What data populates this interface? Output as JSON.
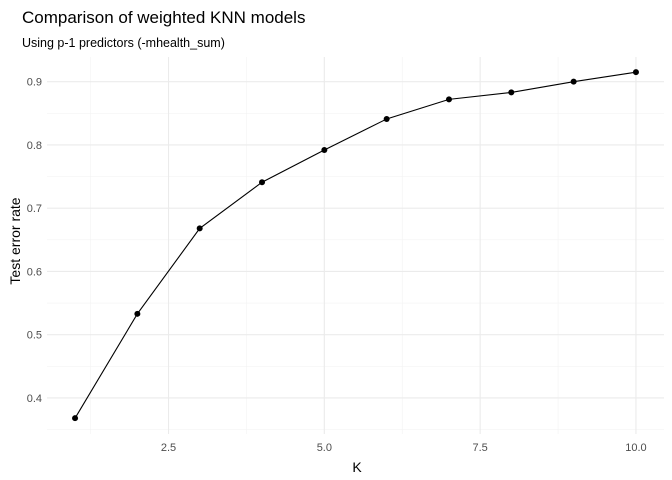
{
  "chart_data": {
    "type": "line",
    "title": "Comparison of weighted KNN models",
    "subtitle": "Using p-1 predictors (-mhealth_sum)",
    "xlabel": "K",
    "ylabel": "Test error rate",
    "xlim": [
      0.55,
      10.45
    ],
    "ylim": [
      0.343,
      0.939
    ],
    "x_ticks": [
      2.5,
      5.0,
      7.5,
      10.0
    ],
    "x_tick_labels": [
      "2.5",
      "5.0",
      "7.5",
      "10.0"
    ],
    "x_minor_ticks": [
      1.25,
      3.75,
      6.25,
      8.75
    ],
    "y_ticks": [
      0.4,
      0.5,
      0.6,
      0.7,
      0.8,
      0.9
    ],
    "y_tick_labels": [
      "0.4",
      "0.5",
      "0.6",
      "0.7",
      "0.8",
      "0.9"
    ],
    "y_minor_ticks": [
      0.35,
      0.45,
      0.55,
      0.65,
      0.75,
      0.85
    ],
    "grid": true,
    "series": [
      {
        "x": [
          1,
          2,
          3,
          4,
          5,
          6,
          7,
          8,
          9,
          10
        ],
        "values": [
          0.368,
          0.533,
          0.668,
          0.741,
          0.792,
          0.841,
          0.872,
          0.883,
          0.9,
          0.915
        ],
        "color": "#000000"
      }
    ]
  }
}
